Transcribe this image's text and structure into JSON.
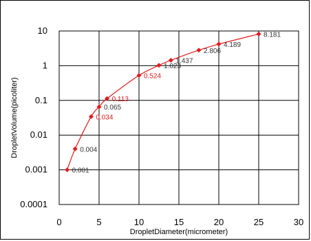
{
  "chart_data": {
    "type": "scatter",
    "title": "",
    "xlabel": "DropletDiameter(micrometer)",
    "ylabel": "DropletVolume(picoliter)",
    "xlim": [
      0,
      30
    ],
    "ylim": [
      0.0001,
      10
    ],
    "yscale": "log",
    "grid": true,
    "x_ticks": [
      "0",
      "5",
      "10",
      "15",
      "20",
      "25",
      "30"
    ],
    "y_ticks": [
      "0.0001",
      "0.001",
      "0.01",
      "0.1",
      "1",
      "10"
    ],
    "colors": {
      "series": "#e31a1c",
      "label_highlight": "#e31a1c",
      "label_default": "#333333"
    },
    "series": [
      {
        "x": [
          1,
          2,
          4,
          5,
          6,
          10,
          12.5,
          14,
          17.5,
          20,
          25
        ],
        "y": [
          0.001,
          0.004,
          0.034,
          0.065,
          0.113,
          0.524,
          1.023,
          1.437,
          2.806,
          4.189,
          8.181
        ]
      }
    ],
    "data_labels": [
      "0.001",
      "0.004",
      "0.034",
      "0.065",
      "0.113",
      "0.524",
      "1.023",
      "1.437",
      "2.806",
      "4.189",
      "8.181"
    ],
    "highlighted_labels": [
      "0.034",
      "0.113",
      "0.524"
    ]
  }
}
